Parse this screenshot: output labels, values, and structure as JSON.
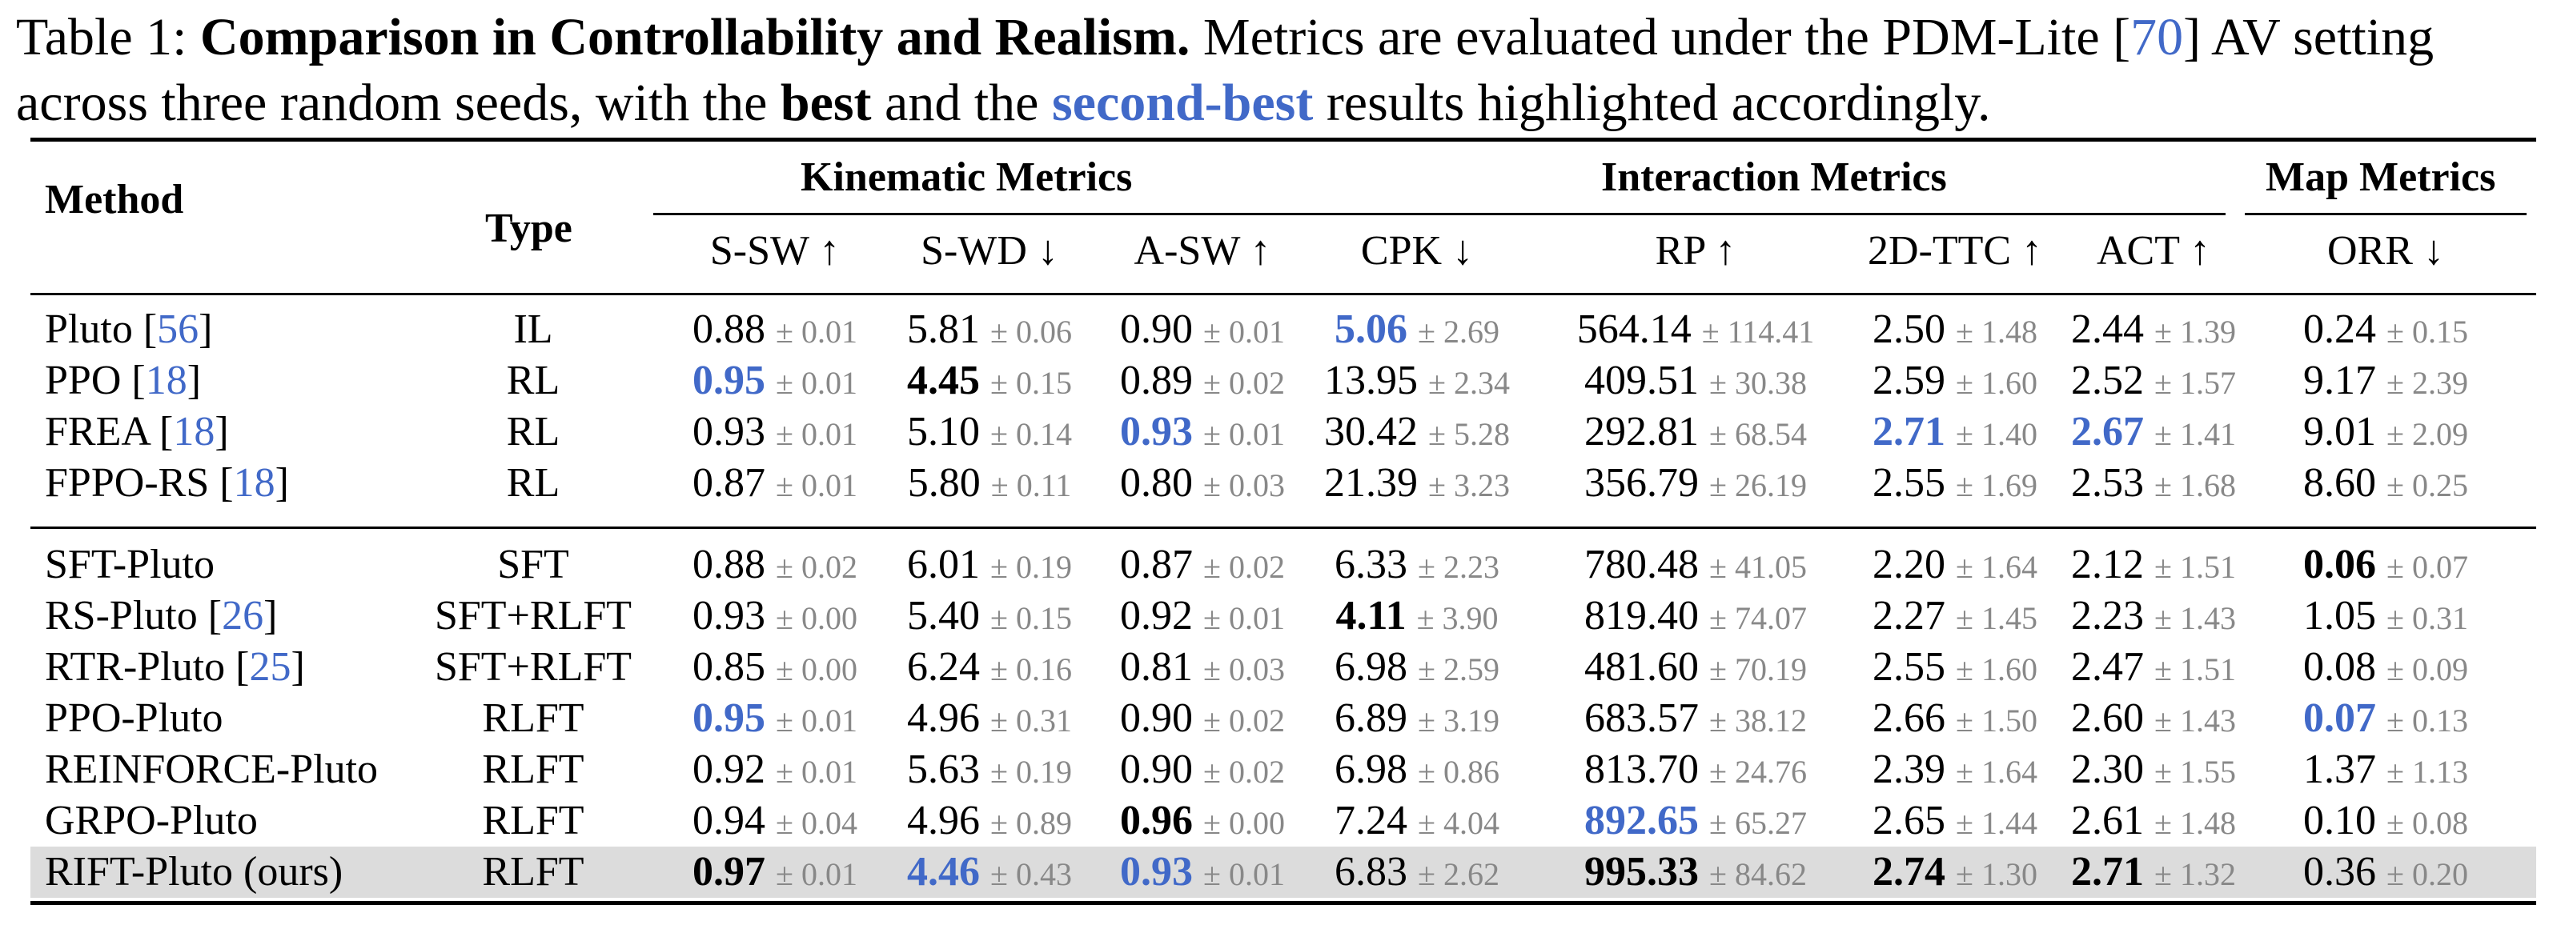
{
  "caption": {
    "label": "Table 1:",
    "bold_title": "Comparison in Controllability and Realism.",
    "text_1": "Metrics are evaluated under the PDM-Lite [",
    "ref": "70",
    "text_2": "] AV setting across three random seeds, with the",
    "best": "best",
    "text_3": "and the",
    "second_best": "second-best",
    "text_4": "results highlighted accordingly."
  },
  "header": {
    "method": "Method",
    "type": "Type",
    "group_kinematic": "Kinematic Metrics",
    "group_interaction": "Interaction Metrics",
    "group_map": "Map Metrics",
    "columns": [
      "S-SW ↑",
      "S-WD ↓",
      "A-SW ↑",
      "CPK ↓",
      "RP ↑",
      "2D-TTC ↑",
      "ACT ↑",
      "ORR ↓"
    ]
  },
  "rows": [
    {
      "method": "Pluto [",
      "ref": "56",
      "type": "IL",
      "vals": [
        [
          "0.88",
          "± 0.01",
          ""
        ],
        [
          "5.81",
          "± 0.06",
          ""
        ],
        [
          "0.90",
          "± 0.01",
          ""
        ],
        [
          "5.06",
          "± 2.69",
          "second"
        ],
        [
          "564.14",
          "± 114.41",
          ""
        ],
        [
          "2.50",
          "± 1.48",
          ""
        ],
        [
          "2.44",
          "± 1.39",
          ""
        ],
        [
          "0.24",
          "± 0.15",
          ""
        ]
      ]
    },
    {
      "method": "PPO [",
      "ref": "18",
      "type": "RL",
      "vals": [
        [
          "0.95",
          "± 0.01",
          "second"
        ],
        [
          "4.45",
          "± 0.15",
          "best"
        ],
        [
          "0.89",
          "± 0.02",
          ""
        ],
        [
          "13.95",
          "± 2.34",
          ""
        ],
        [
          "409.51",
          "± 30.38",
          ""
        ],
        [
          "2.59",
          "± 1.60",
          ""
        ],
        [
          "2.52",
          "± 1.57",
          ""
        ],
        [
          "9.17",
          "± 2.39",
          ""
        ]
      ]
    },
    {
      "method": "FREA [",
      "ref": "18",
      "type": "RL",
      "vals": [
        [
          "0.93",
          "± 0.01",
          ""
        ],
        [
          "5.10",
          "± 0.14",
          ""
        ],
        [
          "0.93",
          "± 0.01",
          "second"
        ],
        [
          "30.42",
          "± 5.28",
          ""
        ],
        [
          "292.81",
          "± 68.54",
          ""
        ],
        [
          "2.71",
          "± 1.40",
          "second"
        ],
        [
          "2.67",
          "± 1.41",
          "second"
        ],
        [
          "9.01",
          "± 2.09",
          ""
        ]
      ]
    },
    {
      "method": "FPPO-RS [",
      "ref": "18",
      "type": "RL",
      "vals": [
        [
          "0.87",
          "± 0.01",
          ""
        ],
        [
          "5.80",
          "± 0.11",
          ""
        ],
        [
          "0.80",
          "± 0.03",
          ""
        ],
        [
          "21.39",
          "± 3.23",
          ""
        ],
        [
          "356.79",
          "± 26.19",
          ""
        ],
        [
          "2.55",
          "± 1.69",
          ""
        ],
        [
          "2.53",
          "± 1.68",
          ""
        ],
        [
          "8.60",
          "± 0.25",
          ""
        ]
      ]
    },
    {
      "method": "SFT-Pluto",
      "ref": "",
      "type": "SFT",
      "vals": [
        [
          "0.88",
          "± 0.02",
          ""
        ],
        [
          "6.01",
          "± 0.19",
          ""
        ],
        [
          "0.87",
          "± 0.02",
          ""
        ],
        [
          "6.33",
          "± 2.23",
          ""
        ],
        [
          "780.48",
          "± 41.05",
          ""
        ],
        [
          "2.20",
          "± 1.64",
          ""
        ],
        [
          "2.12",
          "± 1.51",
          ""
        ],
        [
          "0.06",
          "± 0.07",
          "best"
        ]
      ]
    },
    {
      "method": "RS-Pluto [",
      "ref": "26",
      "type": "SFT+RLFT",
      "vals": [
        [
          "0.93",
          "± 0.00",
          ""
        ],
        [
          "5.40",
          "± 0.15",
          ""
        ],
        [
          "0.92",
          "± 0.01",
          ""
        ],
        [
          "4.11",
          "± 3.90",
          "best"
        ],
        [
          "819.40",
          "± 74.07",
          ""
        ],
        [
          "2.27",
          "± 1.45",
          ""
        ],
        [
          "2.23",
          "± 1.43",
          ""
        ],
        [
          "1.05",
          "± 0.31",
          ""
        ]
      ]
    },
    {
      "method": "RTR-Pluto [",
      "ref": "25",
      "type": "SFT+RLFT",
      "vals": [
        [
          "0.85",
          "± 0.00",
          ""
        ],
        [
          "6.24",
          "± 0.16",
          ""
        ],
        [
          "0.81",
          "± 0.03",
          ""
        ],
        [
          "6.98",
          "± 2.59",
          ""
        ],
        [
          "481.60",
          "± 70.19",
          ""
        ],
        [
          "2.55",
          "± 1.60",
          ""
        ],
        [
          "2.47",
          "± 1.51",
          ""
        ],
        [
          "0.08",
          "± 0.09",
          ""
        ]
      ]
    },
    {
      "method": "PPO-Pluto",
      "ref": "",
      "type": "RLFT",
      "vals": [
        [
          "0.95",
          "± 0.01",
          "second"
        ],
        [
          "4.96",
          "± 0.31",
          ""
        ],
        [
          "0.90",
          "± 0.02",
          ""
        ],
        [
          "6.89",
          "± 3.19",
          ""
        ],
        [
          "683.57",
          "± 38.12",
          ""
        ],
        [
          "2.66",
          "± 1.50",
          ""
        ],
        [
          "2.60",
          "± 1.43",
          ""
        ],
        [
          "0.07",
          "± 0.13",
          "second"
        ]
      ]
    },
    {
      "method": "REINFORCE-Pluto",
      "ref": "",
      "type": "RLFT",
      "vals": [
        [
          "0.92",
          "± 0.01",
          ""
        ],
        [
          "5.63",
          "± 0.19",
          ""
        ],
        [
          "0.90",
          "± 0.02",
          ""
        ],
        [
          "6.98",
          "± 0.86",
          ""
        ],
        [
          "813.70",
          "± 24.76",
          ""
        ],
        [
          "2.39",
          "± 1.64",
          ""
        ],
        [
          "2.30",
          "± 1.55",
          ""
        ],
        [
          "1.37",
          "± 1.13",
          ""
        ]
      ]
    },
    {
      "method": "GRPO-Pluto",
      "ref": "",
      "type": "RLFT",
      "vals": [
        [
          "0.94",
          "± 0.04",
          ""
        ],
        [
          "4.96",
          "± 0.89",
          ""
        ],
        [
          "0.96",
          "± 0.00",
          "best"
        ],
        [
          "7.24",
          "± 4.04",
          ""
        ],
        [
          "892.65",
          "± 65.27",
          "second"
        ],
        [
          "2.65",
          "± 1.44",
          ""
        ],
        [
          "2.61",
          "± 1.48",
          ""
        ],
        [
          "0.10",
          "± 0.08",
          ""
        ]
      ]
    },
    {
      "method": "RIFT-Pluto (ours)",
      "ref": "",
      "type": "RLFT",
      "highlight": true,
      "vals": [
        [
          "0.97",
          "± 0.01",
          "best"
        ],
        [
          "4.46",
          "± 0.43",
          "second"
        ],
        [
          "0.93",
          "± 0.01",
          "second"
        ],
        [
          "6.83",
          "± 2.62",
          ""
        ],
        [
          "995.33",
          "± 84.62",
          "best"
        ],
        [
          "2.74",
          "± 1.30",
          "best"
        ],
        [
          "2.71",
          "± 1.32",
          "best"
        ],
        [
          "0.36",
          "± 0.20",
          ""
        ]
      ]
    }
  ]
}
